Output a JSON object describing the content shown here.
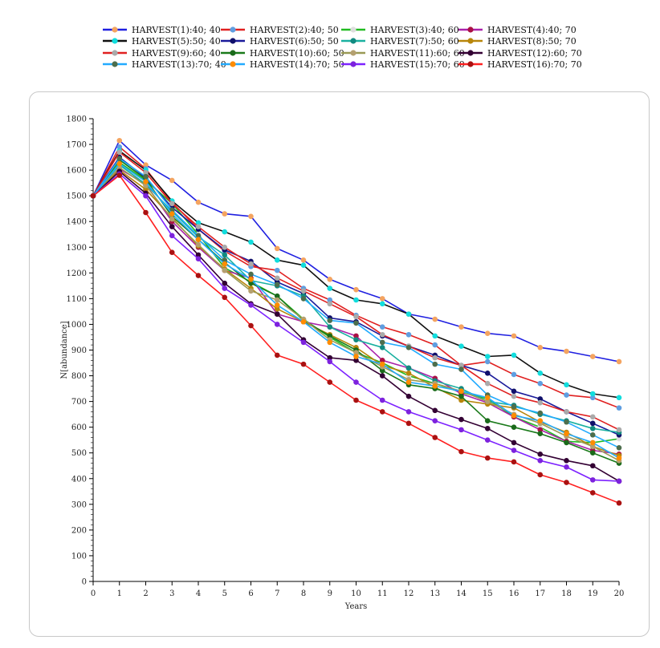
{
  "chart_data": {
    "type": "line",
    "title": "",
    "xlabel": "Years",
    "ylabel": "N[abundance]",
    "xlim": [
      0,
      20
    ],
    "ylim": [
      0,
      1800
    ],
    "x_ticks": [
      0,
      1,
      2,
      3,
      4,
      5,
      6,
      7,
      8,
      9,
      10,
      11,
      12,
      13,
      14,
      15,
      16,
      17,
      18,
      19,
      20
    ],
    "y_ticks": [
      0,
      100,
      200,
      300,
      400,
      500,
      600,
      700,
      800,
      900,
      1000,
      1100,
      1200,
      1300,
      1400,
      1500,
      1600,
      1700,
      1800
    ],
    "grid": false,
    "legend_position": "top",
    "x": [
      0,
      1,
      2,
      3,
      4,
      5,
      6,
      7,
      8,
      9,
      10,
      11,
      12,
      13,
      14,
      15,
      16,
      17,
      18,
      19,
      20
    ],
    "series": [
      {
        "name": "HARVEST(1):40; 40",
        "line_color": "#1f1fe0",
        "marker_color": "#f4a460",
        "values": [
          1500,
          1715,
          1620,
          1560,
          1475,
          1430,
          1420,
          1295,
          1250,
          1175,
          1135,
          1100,
          1040,
          1020,
          990,
          965,
          955,
          910,
          895,
          875,
          855
        ]
      },
      {
        "name": "HARVEST(2):40; 50",
        "line_color": "#e02020",
        "marker_color": "#5f9ee0",
        "values": [
          1500,
          1690,
          1605,
          1475,
          1370,
          1285,
          1225,
          1210,
          1140,
          1095,
          1035,
          990,
          960,
          920,
          840,
          855,
          805,
          770,
          725,
          715,
          675
        ]
      },
      {
        "name": "HARVEST(3):40; 60",
        "line_color": "#22bb22",
        "marker_color": "#dddddd",
        "values": [
          1500,
          1630,
          1560,
          1470,
          1350,
          1220,
          1165,
          1110,
          1020,
          950,
          890,
          850,
          800,
          770,
          735,
          710,
          640,
          600,
          545,
          540,
          555
        ]
      },
      {
        "name": "HARVEST(4):40; 70",
        "line_color": "#aa22aa",
        "marker_color": "#aa1144",
        "values": [
          1500,
          1605,
          1545,
          1400,
          1300,
          1210,
          1180,
          1040,
          1010,
          990,
          955,
          860,
          830,
          790,
          730,
          695,
          640,
          590,
          545,
          510,
          495
        ]
      },
      {
        "name": "HARVEST(5):50; 40",
        "line_color": "#111111",
        "marker_color": "#11dddd",
        "values": [
          1500,
          1675,
          1600,
          1480,
          1395,
          1360,
          1320,
          1250,
          1230,
          1140,
          1095,
          1080,
          1040,
          955,
          915,
          875,
          880,
          810,
          765,
          730,
          715
        ]
      },
      {
        "name": "HARVEST(6):50; 50",
        "line_color": "#1a1a9a",
        "marker_color": "#10106a",
        "values": [
          1500,
          1650,
          1570,
          1455,
          1370,
          1290,
          1245,
          1165,
          1120,
          1025,
          1010,
          955,
          915,
          880,
          840,
          810,
          740,
          710,
          660,
          615,
          570
        ]
      },
      {
        "name": "HARVEST(7):50; 60",
        "line_color": "#1ab0a0",
        "marker_color": "#128a80",
        "values": [
          1500,
          1620,
          1545,
          1440,
          1340,
          1270,
          1170,
          1150,
          1110,
          990,
          940,
          910,
          830,
          780,
          750,
          700,
          685,
          650,
          625,
          595,
          580
        ]
      },
      {
        "name": "HARVEST(8):50; 70",
        "line_color": "#b8860b",
        "marker_color": "#b8860b",
        "values": [
          1500,
          1600,
          1525,
          1415,
          1305,
          1215,
          1140,
          1060,
          1010,
          960,
          910,
          840,
          810,
          755,
          705,
          690,
          675,
          620,
          580,
          525,
          490
        ]
      },
      {
        "name": "HARVEST(9):60; 40",
        "line_color": "#e02020",
        "marker_color": "#aaaaaa",
        "values": [
          1500,
          1670,
          1590,
          1470,
          1380,
          1300,
          1235,
          1180,
          1130,
          1080,
          1030,
          960,
          915,
          870,
          840,
          770,
          720,
          695,
          660,
          640,
          590
        ]
      },
      {
        "name": "HARVEST(10):60; 50",
        "line_color": "#1a7a1a",
        "marker_color": "#1a6a1a",
        "values": [
          1500,
          1640,
          1565,
          1420,
          1330,
          1240,
          1160,
          1110,
          1015,
          955,
          900,
          820,
          765,
          750,
          720,
          625,
          600,
          575,
          540,
          500,
          460
        ]
      },
      {
        "name": "HARVEST(11):60; 60",
        "line_color": "#9a9a55",
        "marker_color": "#b4a070",
        "values": [
          1500,
          1610,
          1540,
          1410,
          1310,
          1210,
          1130,
          1095,
          1020,
          940,
          890,
          835,
          785,
          770,
          740,
          700,
          650,
          615,
          565,
          525,
          470
        ]
      },
      {
        "name": "HARVEST(12):60; 70",
        "line_color": "#330033",
        "marker_color": "#330033",
        "values": [
          1500,
          1595,
          1510,
          1380,
          1270,
          1160,
          1080,
          1040,
          940,
          870,
          860,
          800,
          720,
          665,
          630,
          595,
          540,
          495,
          470,
          450,
          390
        ]
      },
      {
        "name": "HARVEST(13):70; 40",
        "line_color": "#22aaff",
        "marker_color": "#4d6e4d",
        "values": [
          1500,
          1645,
          1575,
          1445,
          1345,
          1250,
          1195,
          1155,
          1100,
          1015,
          1005,
          930,
          910,
          845,
          825,
          725,
          680,
          655,
          620,
          570,
          520
        ]
      },
      {
        "name": "HARVEST(14):70; 50",
        "line_color": "#22aaff",
        "marker_color": "#ff8c00",
        "values": [
          1500,
          1625,
          1555,
          1430,
          1330,
          1235,
          1175,
          1075,
          1010,
          930,
          875,
          845,
          775,
          760,
          740,
          715,
          645,
          625,
          575,
          540,
          480
        ]
      },
      {
        "name": "HARVEST(15):70; 60",
        "line_color": "#7d22ff",
        "marker_color": "#7d22dd",
        "values": [
          1500,
          1585,
          1500,
          1345,
          1255,
          1140,
          1075,
          1000,
          930,
          855,
          775,
          705,
          660,
          625,
          590,
          550,
          510,
          470,
          445,
          395,
          390
        ]
      },
      {
        "name": "HARVEST(16):70; 70",
        "line_color": "#ff2020",
        "marker_color": "#aa1111",
        "values": [
          1500,
          1580,
          1435,
          1280,
          1190,
          1105,
          995,
          880,
          845,
          775,
          705,
          660,
          615,
          560,
          505,
          480,
          465,
          415,
          385,
          345,
          305
        ]
      }
    ]
  }
}
